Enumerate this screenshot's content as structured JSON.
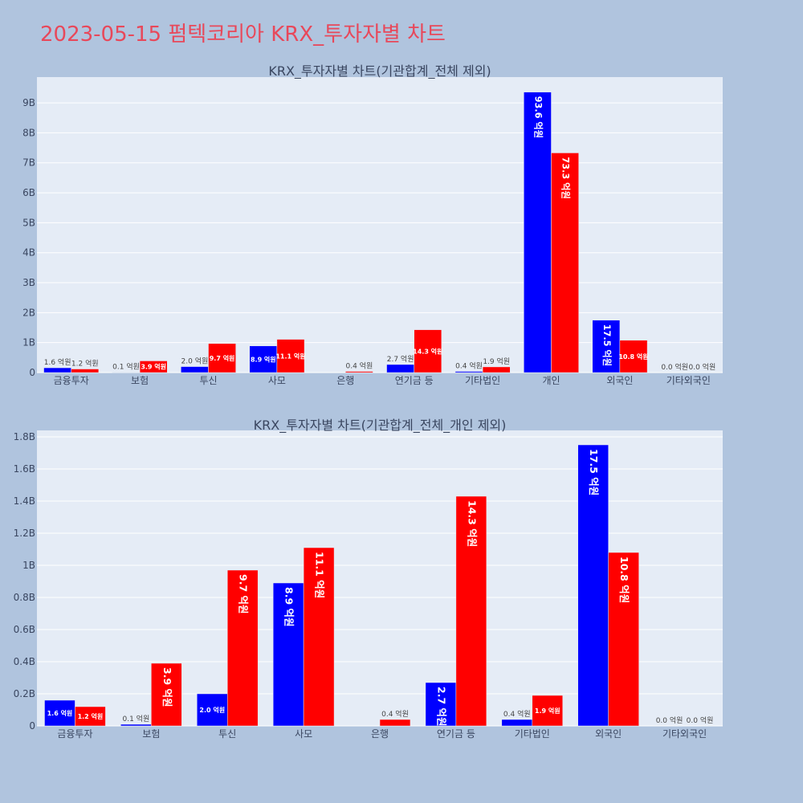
{
  "page": {
    "title": "2023-05-15 펌텍코리아 KRX_투자자별 차트"
  },
  "colors": {
    "background": "#b0c4de",
    "plot_bg": "#e5ecf6",
    "buy": "#0000ff",
    "sell": "#ff0000",
    "title": "#e8485a"
  },
  "chart_data": [
    {
      "type": "bar",
      "title": "KRX_투자자별 차트(기관합계_전체 제외)",
      "categories": [
        "금융투자",
        "보험",
        "투신",
        "사모",
        "은행",
        "연기금 등",
        "기타법인",
        "개인",
        "외국인",
        "기타외국인"
      ],
      "series": [
        {
          "values": [
            0.16,
            0.01,
            0.2,
            0.89,
            0.0,
            0.27,
            0.04,
            9.36,
            1.75,
            0.0
          ],
          "labels": [
            "1.6 억원",
            "0.1 억원",
            "2.0 억원",
            "8.9 억원",
            "",
            "2.7 억원",
            "0.4 억원",
            "93.6 억원",
            "17.5 억원",
            "0.0 억원"
          ]
        },
        {
          "values": [
            0.12,
            0.39,
            0.97,
            1.11,
            0.04,
            1.43,
            0.19,
            7.33,
            1.08,
            0.0
          ],
          "labels": [
            "1.2 억원",
            "3.9 억원",
            "9.7 억원",
            "11.1 억원",
            "0.4 억원",
            "14.3 억원",
            "1.9 억원",
            "73.3 억원",
            "10.8 억원",
            "0.0 억원"
          ]
        }
      ],
      "yticks": [
        {
          "v": 0,
          "label": "0"
        },
        {
          "v": 1,
          "label": "1B"
        },
        {
          "v": 2,
          "label": "2B"
        },
        {
          "v": 3,
          "label": "3B"
        },
        {
          "v": 4,
          "label": "4B"
        },
        {
          "v": 5,
          "label": "5B"
        },
        {
          "v": 6,
          "label": "6B"
        },
        {
          "v": 7,
          "label": "7B"
        },
        {
          "v": 8,
          "label": "8B"
        },
        {
          "v": 9,
          "label": "9B"
        }
      ],
      "ylim": [
        0,
        9.86
      ],
      "grid": true
    },
    {
      "type": "bar",
      "title": "KRX_투자자별 차트(기관합계_전체_개인 제외)",
      "categories": [
        "금융투자",
        "보험",
        "투신",
        "사모",
        "은행",
        "연기금 등",
        "기타법인",
        "외국인",
        "기타외국인"
      ],
      "series": [
        {
          "values": [
            0.16,
            0.01,
            0.2,
            0.89,
            0.0,
            0.27,
            0.04,
            1.75,
            0.0
          ],
          "labels": [
            "1.6 억원",
            "0.1 억원",
            "2.0 억원",
            "8.9 억원",
            "",
            "2.7 억원",
            "0.4 억원",
            "17.5 억원",
            "0.0 억원"
          ]
        },
        {
          "values": [
            0.12,
            0.39,
            0.97,
            1.11,
            0.04,
            1.43,
            0.19,
            1.08,
            0.0
          ],
          "labels": [
            "1.2 억원",
            "3.9 억원",
            "9.7 억원",
            "11.1 억원",
            "0.4 억원",
            "14.3 억원",
            "1.9 억원",
            "10.8 억원",
            "0.0 억원"
          ]
        }
      ],
      "yticks": [
        {
          "v": 0,
          "label": "0"
        },
        {
          "v": 0.2,
          "label": "0.2B"
        },
        {
          "v": 0.4,
          "label": "0.4B"
        },
        {
          "v": 0.6,
          "label": "0.6B"
        },
        {
          "v": 0.8,
          "label": "0.8B"
        },
        {
          "v": 1.0,
          "label": "1B"
        },
        {
          "v": 1.2,
          "label": "1.2B"
        },
        {
          "v": 1.4,
          "label": "1.4B"
        },
        {
          "v": 1.6,
          "label": "1.6B"
        },
        {
          "v": 1.8,
          "label": "1.8B"
        }
      ],
      "ylim": [
        0,
        1.84
      ],
      "grid": true
    }
  ]
}
